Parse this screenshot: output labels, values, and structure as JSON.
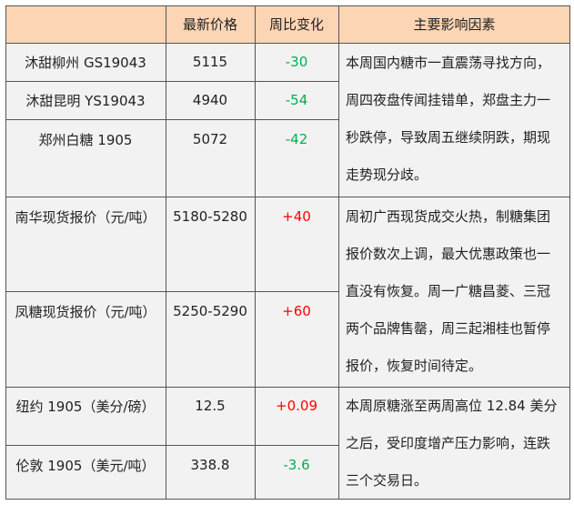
{
  "table": {
    "headers": [
      "",
      "最新价格",
      "周比变化",
      "主要影响因素"
    ],
    "rows": [
      {
        "name": "沐甜柳州 GS19043",
        "price": "5115",
        "change": "-30",
        "trend": "down"
      },
      {
        "name": "沐甜昆明 YS19043",
        "price": "4940",
        "change": "-54",
        "trend": "down"
      },
      {
        "name": "郑州白糖 1905",
        "price": "5072",
        "change": "-42",
        "trend": "down"
      },
      {
        "name": "南华现货报价（元/吨）",
        "price": "5180-5280",
        "change": "+40",
        "trend": "up"
      },
      {
        "name": "凤糖现货报价（元/吨）",
        "price": "5250-5290",
        "change": "+60",
        "trend": "up"
      },
      {
        "name": "纽约 1905（美分/磅）",
        "price": "12.5",
        "change": "+0.09",
        "trend": "up"
      },
      {
        "name": "伦敦 1905（美元/吨）",
        "price": "338.8",
        "change": "-3.6",
        "trend": "down"
      }
    ],
    "factors": [
      {
        "lines": [
          "本周国内糖市一直震荡寻找方向，",
          "周四夜盘传闻挂错单，郑盘主力一",
          "秒跌停，导致周五继续阴跌，期现",
          "走势现分歧。"
        ]
      },
      {
        "lines": [
          "周初广西现货成交火热，制糖集团",
          "报价数次上调，最大优惠政策也一",
          "直没有恢复。周一广糖昌菱、三冠",
          "两个品牌售罄，周三起湘桂也暂停",
          "报价，恢复时间待定。"
        ]
      },
      {
        "lines": [
          "本周原糖涨至两周高位 12.84 美分",
          "之后，受印度增产压力影响，连跌",
          "三个交易日。"
        ]
      }
    ],
    "colors": {
      "header_bg": "#fcd5b4",
      "body_bg": "#f2f2f2",
      "up": "#ff0000",
      "down": "#00b050"
    }
  }
}
